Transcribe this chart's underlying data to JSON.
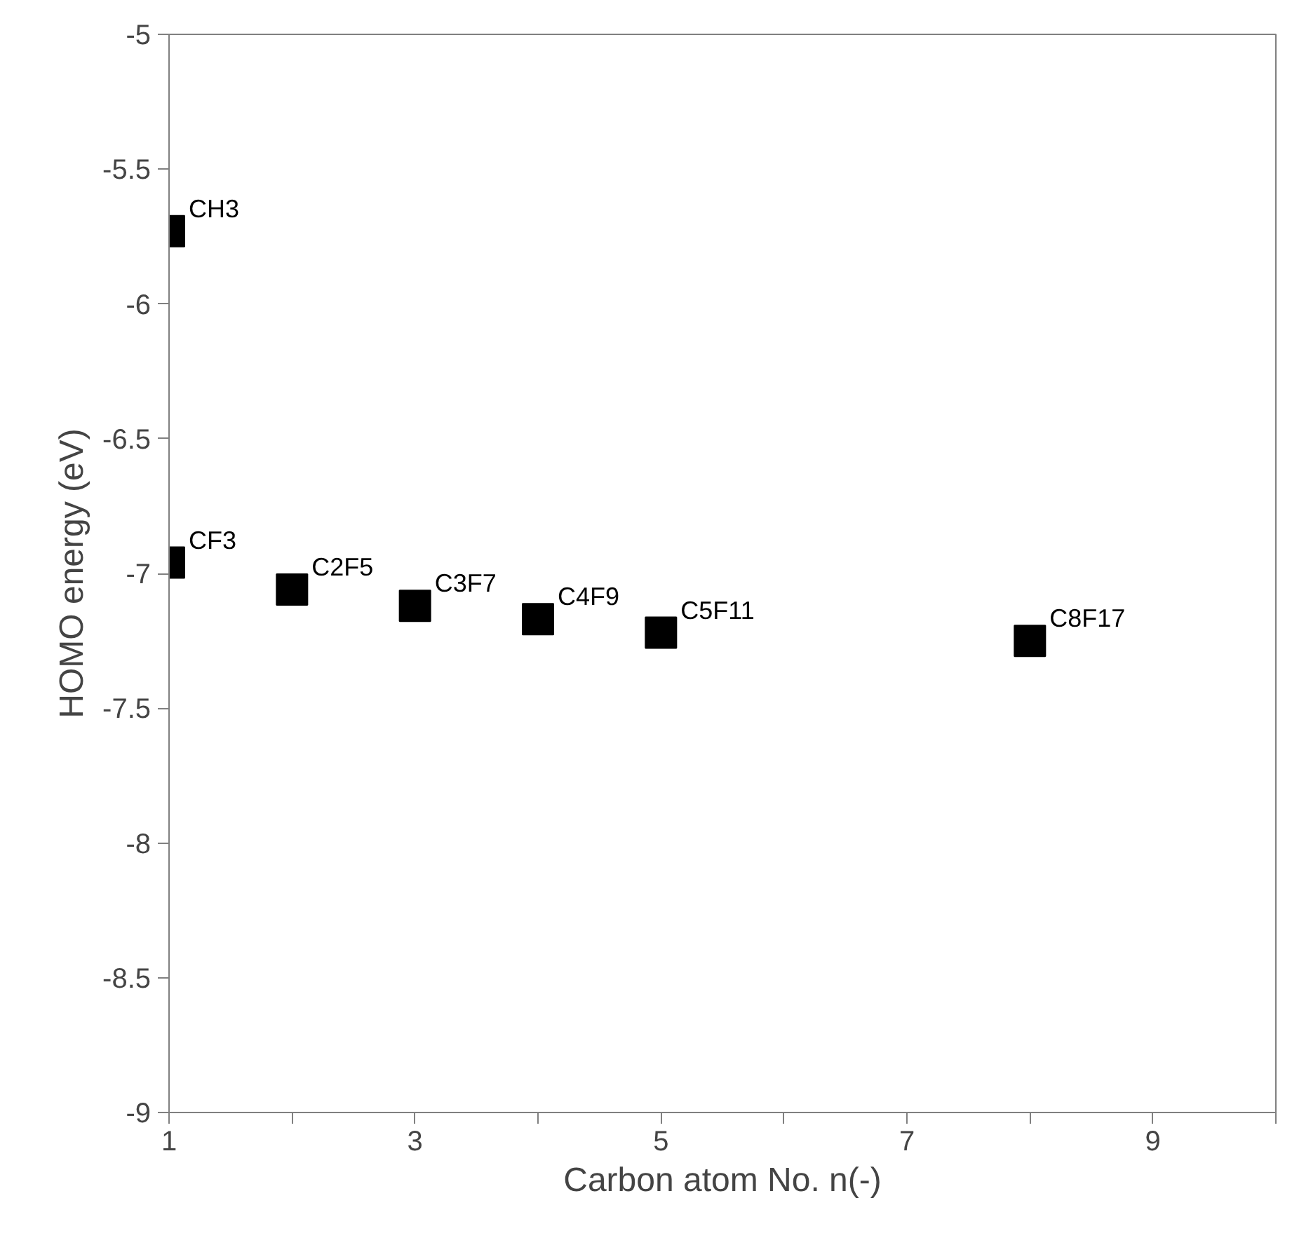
{
  "chart_data": {
    "type": "scatter",
    "xlabel": "Carbon atom No. n(-)",
    "ylabel": "HOMO energy (eV)",
    "x": [
      1,
      1,
      2,
      3,
      4,
      5,
      8
    ],
    "series": [
      {
        "color": "#000000",
        "values": [
          -5.73,
          -6.96,
          -7.06,
          -7.12,
          -7.17,
          -7.22,
          -7.25
        ]
      }
    ],
    "xlim": [
      1,
      10
    ],
    "xticks": [
      1,
      {
        "value": 2,
        "label": null
      },
      3,
      {
        "value": 4,
        "label": null
      },
      5,
      {
        "value": 6,
        "label": null
      },
      7,
      {
        "value": 8,
        "label": null
      },
      9,
      {
        "value": 10,
        "label": null
      }
    ],
    "ylim": [
      -9,
      -5
    ],
    "yticks": [
      -9,
      -8.5,
      -8,
      -7.5,
      -7,
      -6.5,
      -6,
      -5.5,
      -5
    ],
    "marker": "square",
    "grid": false,
    "annotations": [
      {
        "text": "CH3",
        "x": 1,
        "y": -5.73
      },
      {
        "text": "CF3",
        "x": 1,
        "y": -6.96
      },
      {
        "text": "C2F5",
        "x": 2,
        "y": -7.06
      },
      {
        "text": "C3F7",
        "x": 3,
        "y": -7.12
      },
      {
        "text": "C4F9",
        "x": 4,
        "y": -7.17
      },
      {
        "text": "C5F11",
        "x": 5,
        "y": -7.22
      },
      {
        "text": "C8F17",
        "x": 8,
        "y": -7.25
      }
    ]
  }
}
